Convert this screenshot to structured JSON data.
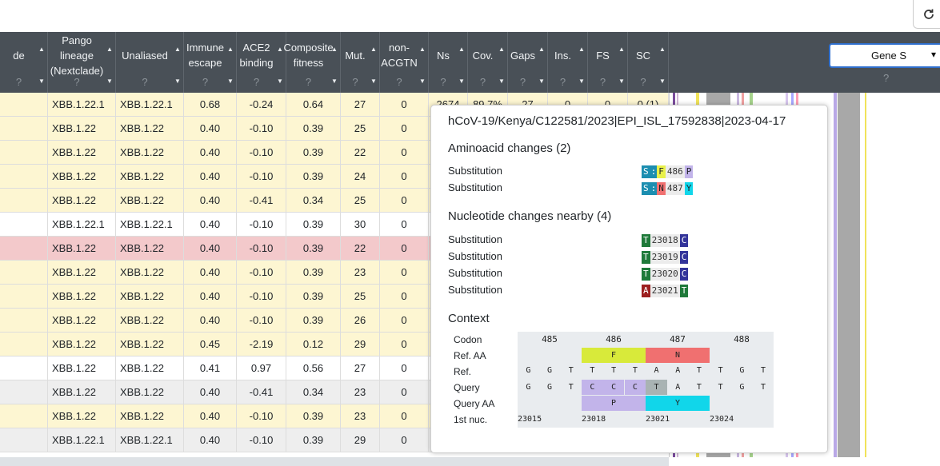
{
  "header": {
    "refresh_icon": "refresh-icon",
    "columns": [
      {
        "label": "de",
        "q": "?"
      },
      {
        "label": "Pango lineage (Nextclade)",
        "q": "?"
      },
      {
        "label": "Unaliased",
        "q": "?"
      },
      {
        "label": "Immune escape",
        "q": "?"
      },
      {
        "label": "ACE2 binding",
        "q": "?"
      },
      {
        "label": "Composite fitness",
        "q": "?"
      },
      {
        "label": "Mut.",
        "q": "?"
      },
      {
        "label": "non-ACGTN",
        "q": "?"
      },
      {
        "label": "Ns",
        "q": "?"
      },
      {
        "label": "Cov.",
        "q": "?"
      },
      {
        "label": "Gaps",
        "q": "?"
      },
      {
        "label": "Ins.",
        "q": "?"
      },
      {
        "label": "FS",
        "q": "?"
      },
      {
        "label": "SC",
        "q": "?"
      }
    ],
    "gene_select": "Gene S",
    "gene_q": "?"
  },
  "rows": [
    {
      "lineage": "XBB.1.22.1",
      "unaliased": "XBB.1.22.1",
      "immune": "0.68",
      "ace2": "-0.24",
      "fitness": "0.64",
      "mut": "27",
      "nonacgtn": "0",
      "ns": "2674",
      "cov": "89.7%",
      "gaps": "27",
      "ins": "0",
      "fs": "0",
      "sc": "0 (1)",
      "color": "#fdf6d2"
    },
    {
      "lineage": "XBB.1.22",
      "unaliased": "XBB.1.22",
      "immune": "0.40",
      "ace2": "-0.10",
      "fitness": "0.39",
      "mut": "25",
      "nonacgtn": "0",
      "color": "#fdf6d2"
    },
    {
      "lineage": "XBB.1.22",
      "unaliased": "XBB.1.22",
      "immune": "0.40",
      "ace2": "-0.10",
      "fitness": "0.39",
      "mut": "22",
      "nonacgtn": "0",
      "color": "#fdf6d2"
    },
    {
      "lineage": "XBB.1.22",
      "unaliased": "XBB.1.22",
      "immune": "0.40",
      "ace2": "-0.10",
      "fitness": "0.39",
      "mut": "24",
      "nonacgtn": "0",
      "color": "#fdf6d2"
    },
    {
      "lineage": "XBB.1.22",
      "unaliased": "XBB.1.22",
      "immune": "0.40",
      "ace2": "-0.41",
      "fitness": "0.34",
      "mut": "25",
      "nonacgtn": "0",
      "color": "#fdf6d2"
    },
    {
      "lineage": "XBB.1.22.1",
      "unaliased": "XBB.1.22.1",
      "immune": "0.40",
      "ace2": "-0.10",
      "fitness": "0.39",
      "mut": "30",
      "nonacgtn": "0",
      "color": "#ffffff"
    },
    {
      "lineage": "XBB.1.22",
      "unaliased": "XBB.1.22",
      "immune": "0.40",
      "ace2": "-0.10",
      "fitness": "0.39",
      "mut": "22",
      "nonacgtn": "0",
      "color": "#f3c9cb"
    },
    {
      "lineage": "XBB.1.22",
      "unaliased": "XBB.1.22",
      "immune": "0.40",
      "ace2": "-0.10",
      "fitness": "0.39",
      "mut": "23",
      "nonacgtn": "0",
      "color": "#fdf6d2"
    },
    {
      "lineage": "XBB.1.22",
      "unaliased": "XBB.1.22",
      "immune": "0.40",
      "ace2": "-0.10",
      "fitness": "0.39",
      "mut": "25",
      "nonacgtn": "0",
      "color": "#fdf6d2"
    },
    {
      "lineage": "XBB.1.22",
      "unaliased": "XBB.1.22",
      "immune": "0.40",
      "ace2": "-0.10",
      "fitness": "0.39",
      "mut": "26",
      "nonacgtn": "0",
      "color": "#fdf6d2"
    },
    {
      "lineage": "XBB.1.22",
      "unaliased": "XBB.1.22",
      "immune": "0.45",
      "ace2": "-2.19",
      "fitness": "0.12",
      "mut": "29",
      "nonacgtn": "0",
      "color": "#fdf6d2"
    },
    {
      "lineage": "XBB.1.22",
      "unaliased": "XBB.1.22",
      "immune": "0.41",
      "ace2": "0.97",
      "fitness": "0.56",
      "mut": "27",
      "nonacgtn": "0",
      "color": "#ffffff"
    },
    {
      "lineage": "XBB.1.22",
      "unaliased": "XBB.1.22",
      "immune": "0.40",
      "ace2": "-0.41",
      "fitness": "0.34",
      "mut": "23",
      "nonacgtn": "0",
      "color": "#eeeeee"
    },
    {
      "lineage": "XBB.1.22",
      "unaliased": "XBB.1.22",
      "immune": "0.40",
      "ace2": "-0.10",
      "fitness": "0.39",
      "mut": "23",
      "nonacgtn": "0",
      "color": "#fdf6d2"
    },
    {
      "lineage": "XBB.1.22.1",
      "unaliased": "XBB.1.22.1",
      "immune": "0.40",
      "ace2": "-0.10",
      "fitness": "0.39",
      "mut": "29",
      "nonacgtn": "0",
      "color": "#eeeeee"
    }
  ],
  "popup": {
    "title": "hCoV-19/Kenya/C122581/2023|EPI_ISL_17592838|2023-04-17",
    "aa_heading": "Aminoacid changes (2)",
    "aa_changes": [
      {
        "kind": "Substitution",
        "gene": "S",
        "ref": "F",
        "pos": "486",
        "qry": "P",
        "ref_color": "#e8f04a",
        "qry_color": "#c2b4ea"
      },
      {
        "kind": "Substitution",
        "gene": "S",
        "ref": "N",
        "pos": "487",
        "qry": "Y",
        "ref_color": "#f07070",
        "qry_color": "#11d6ea"
      }
    ],
    "nuc_heading": "Nucleotide changes nearby (4)",
    "nuc_changes": [
      {
        "kind": "Substitution",
        "ref": "T",
        "pos": "23018",
        "qry": "C",
        "ref_color": "#1f7a3a",
        "qry_color": "#33349a"
      },
      {
        "kind": "Substitution",
        "ref": "T",
        "pos": "23019",
        "qry": "C",
        "ref_color": "#1f7a3a",
        "qry_color": "#33349a"
      },
      {
        "kind": "Substitution",
        "ref": "T",
        "pos": "23020",
        "qry": "C",
        "ref_color": "#1f7a3a",
        "qry_color": "#33349a"
      },
      {
        "kind": "Substitution",
        "ref": "A",
        "pos": "23021",
        "qry": "T",
        "ref_color": "#9c1f1f",
        "qry_color": "#1f7a3a"
      }
    ],
    "context_heading": "Context",
    "context": {
      "row_labels": [
        "Codon",
        "Ref. AA",
        "Ref.",
        "Query",
        "Query AA",
        "1st nuc."
      ],
      "codons": [
        "485",
        "486",
        "487",
        "488"
      ],
      "ref_aa": [
        "F",
        "N"
      ],
      "ref_nuc": [
        "G",
        "G",
        "T",
        "T",
        "T",
        "T",
        "A",
        "A",
        "T",
        "T",
        "G",
        "T"
      ],
      "query_nuc": [
        "G",
        "G",
        "T",
        "C",
        "C",
        "C",
        "T",
        "A",
        "T",
        "T",
        "G",
        "T"
      ],
      "query_aa": [
        "P",
        "Y"
      ],
      "first_nuc": [
        "23015",
        "23018",
        "23021",
        "23024"
      ]
    }
  }
}
